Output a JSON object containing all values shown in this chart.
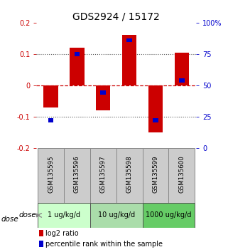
{
  "title": "GDS2924 / 15172",
  "samples": [
    "GSM135595",
    "GSM135596",
    "GSM135597",
    "GSM135598",
    "GSM135599",
    "GSM135600"
  ],
  "log2_ratio": [
    -0.07,
    0.12,
    -0.08,
    0.16,
    -0.15,
    0.105
  ],
  "percentile_rank": [
    0.22,
    0.75,
    0.44,
    0.86,
    0.22,
    0.54
  ],
  "bar_color": "#cc0000",
  "blue_color": "#0000cc",
  "ylim": [
    -0.2,
    0.2
  ],
  "yticks_left": [
    -0.2,
    -0.1,
    0,
    0.1,
    0.2
  ],
  "yticks_right": [
    0,
    25,
    50,
    75,
    100
  ],
  "doses": [
    {
      "label": "1 ug/kg/d",
      "samples": [
        0,
        1
      ]
    },
    {
      "label": "10 ug/kg/d",
      "samples": [
        2,
        3
      ]
    },
    {
      "label": "1000 ug/kg/d",
      "samples": [
        4,
        5
      ]
    }
  ],
  "dose_label": "dose",
  "legend_red": "log2 ratio",
  "legend_blue": "percentile rank within the sample",
  "bar_width": 0.55,
  "title_fontsize": 10,
  "tick_fontsize": 7,
  "left_tick_color": "#cc0000",
  "right_tick_color": "#0000cc",
  "zero_line_color": "#cc0000",
  "dotted_line_color": "#555555",
  "sample_box_color": "#cccccc",
  "dose_box_colors": [
    "#ccffcc",
    "#aaddaa",
    "#66cc66"
  ],
  "sample_box_edge": "#888888"
}
